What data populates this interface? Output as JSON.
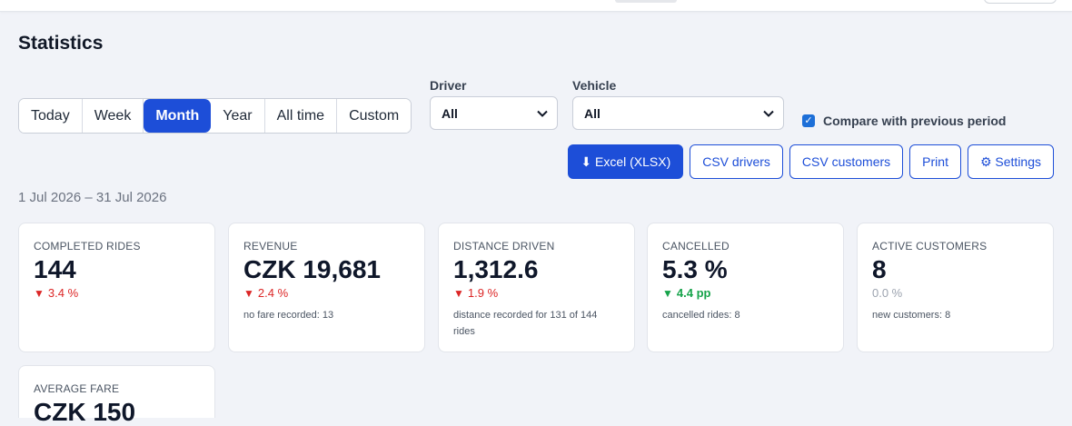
{
  "page": {
    "title": "Statistics",
    "date_range": "1 Jul 2026 – 31 Jul 2026"
  },
  "period_tabs": [
    {
      "label": "Today",
      "active": false
    },
    {
      "label": "Week",
      "active": false
    },
    {
      "label": "Month",
      "active": true
    },
    {
      "label": "Year",
      "active": false
    },
    {
      "label": "All time",
      "active": false
    },
    {
      "label": "Custom",
      "active": false
    }
  ],
  "filters": {
    "driver": {
      "label": "Driver",
      "value": "All"
    },
    "vehicle": {
      "label": "Vehicle",
      "value": "All"
    },
    "compare": {
      "label": "Compare with previous period",
      "checked": true
    }
  },
  "actions": {
    "excel": "⬇ Excel (XLSX)",
    "csv_drivers": "CSV drivers",
    "csv_customers": "CSV customers",
    "print": "Print",
    "settings": "⚙ Settings"
  },
  "cards": [
    {
      "label": "COMPLETED RIDES",
      "value": "144",
      "delta": "3.4 %",
      "trend": "down",
      "note": ""
    },
    {
      "label": "REVENUE",
      "value": "CZK 19,681",
      "delta": "2.4 %",
      "trend": "down",
      "note": "no fare recorded: 13"
    },
    {
      "label": "DISTANCE DRIVEN",
      "value": "1,312.6",
      "delta": "1.9 %",
      "trend": "down",
      "note": "distance recorded for 131 of 144 rides"
    },
    {
      "label": "CANCELLED",
      "value": "5.3 %",
      "delta": "4.4 pp",
      "trend": "up",
      "note": "cancelled rides: 8"
    },
    {
      "label": "ACTIVE CUSTOMERS",
      "value": "8",
      "delta": "0.0 %",
      "trend": "neutral",
      "note": "new customers: 8"
    },
    {
      "label": "AVERAGE FARE",
      "value": "CZK 150",
      "delta": "",
      "trend": "",
      "note": ""
    }
  ],
  "icons": {
    "down": "▼",
    "up": "▼",
    "checkbox": "✓",
    "chevron": "⌄"
  },
  "colors": {
    "accent": "#1d4ed8",
    "down": "#dc2626",
    "up": "#16a34a",
    "neutral": "#9ca3af"
  }
}
